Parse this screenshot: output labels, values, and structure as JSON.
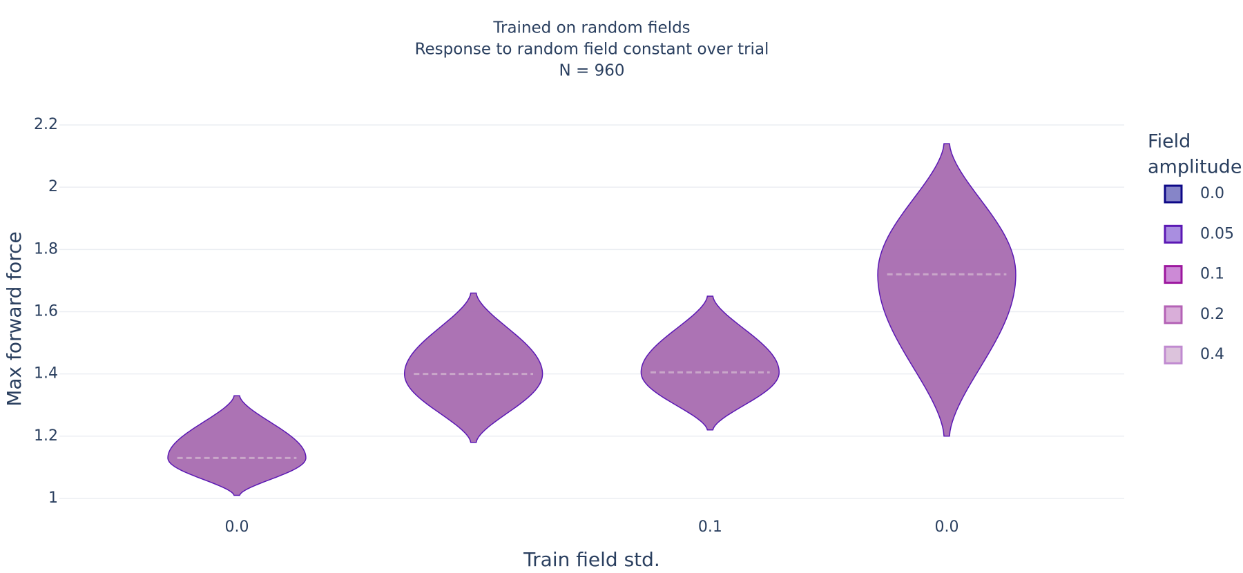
{
  "chart_data": {
    "type": "violin",
    "title": [
      "Trained on random fields",
      "Response to random field constant over trial",
      "N = 960"
    ],
    "x_label": "Train field std.",
    "y_label": "Max forward force",
    "categories": [
      "0.0",
      null,
      "0.1",
      "0.0"
    ],
    "violins": {
      "mins": [
        1.01,
        1.18,
        1.22,
        1.2
      ],
      "maxs": [
        1.33,
        1.66,
        1.65,
        2.14
      ],
      "medians": [
        1.13,
        1.4,
        1.405,
        1.72
      ],
      "color": "#a86bb0"
    },
    "legend_title": [
      "Field",
      "amplitude"
    ],
    "series": [
      {
        "name": "0.0",
        "color": "#0d0887"
      },
      {
        "name": "0.05",
        "color": "#5b18b4"
      },
      {
        "name": "0.1",
        "color": "#9c179e"
      },
      {
        "name": "0.2",
        "color": "#b462b6"
      },
      {
        "name": "0.4",
        "color": "#c08ad0"
      }
    ],
    "ylim": [
      0.96,
      2.22
    ],
    "yticks": [
      1,
      1.2,
      1.4,
      1.6,
      1.8,
      2,
      2.2
    ],
    "grid": true
  }
}
